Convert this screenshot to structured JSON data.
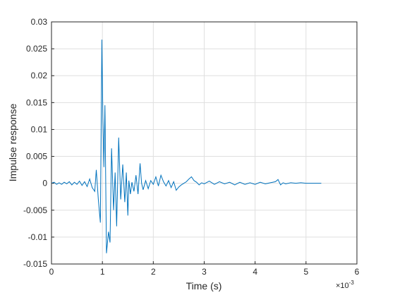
{
  "chart_data": {
    "type": "line",
    "xlabel": "Time (s)",
    "ylabel": "Impulse response",
    "x_exponent": {
      "base": "×10",
      "power": "-3"
    },
    "xlim": [
      0,
      6
    ],
    "xticks": [
      0,
      1,
      2,
      3,
      4,
      5,
      6
    ],
    "ylim": [
      -0.015,
      0.03
    ],
    "yticks": [
      -0.015,
      -0.01,
      -0.005,
      0,
      0.005,
      0.01,
      0.015,
      0.02,
      0.025,
      0.03
    ],
    "grid": true,
    "series": [
      {
        "color": "#0072bd",
        "x": [
          0,
          0.05,
          0.1,
          0.15,
          0.2,
          0.25,
          0.3,
          0.35,
          0.4,
          0.45,
          0.5,
          0.55,
          0.6,
          0.65,
          0.7,
          0.75,
          0.8,
          0.85,
          0.88,
          0.92,
          0.96,
          0.99,
          1.01,
          1.03,
          1.05,
          1.08,
          1.12,
          1.15,
          1.18,
          1.22,
          1.25,
          1.28,
          1.32,
          1.36,
          1.4,
          1.44,
          1.47,
          1.5,
          1.52,
          1.55,
          1.58,
          1.62,
          1.66,
          1.7,
          1.74,
          1.77,
          1.8,
          1.85,
          1.9,
          1.95,
          2.0,
          2.05,
          2.1,
          2.15,
          2.2,
          2.25,
          2.3,
          2.35,
          2.4,
          2.45,
          2.5,
          2.55,
          2.6,
          2.65,
          2.7,
          2.75,
          2.8,
          2.85,
          2.9,
          2.95,
          3.0,
          3.1,
          3.2,
          3.3,
          3.4,
          3.5,
          3.6,
          3.7,
          3.8,
          3.9,
          4.0,
          4.1,
          4.2,
          4.3,
          4.4,
          4.45,
          4.5,
          4.55,
          4.6,
          4.7,
          4.8,
          4.9,
          5.0,
          5.1,
          5.2,
          5.3
        ],
        "values": [
          0,
          0.0002,
          -0.0002,
          0.0001,
          -0.0002,
          0.0002,
          -0.0001,
          0.0003,
          -0.0003,
          0.0002,
          -0.0002,
          0.0004,
          -0.0004,
          0.0003,
          -0.0006,
          0.0008,
          -0.0008,
          -0.0015,
          0.0025,
          -0.003,
          -0.0073,
          0.0267,
          0.012,
          0.003,
          0.0145,
          -0.013,
          -0.009,
          -0.011,
          0.0065,
          -0.005,
          0.002,
          -0.008,
          0.0085,
          -0.003,
          0.0035,
          -0.0035,
          0.002,
          -0.006,
          0.0005,
          -0.002,
          0.0002,
          -0.0015,
          0.0015,
          -0.002,
          0.0037,
          0,
          -0.0012,
          0.0005,
          -0.001,
          0.0005,
          -0.0002,
          0.0012,
          -0.0005,
          0.0015,
          0.0003,
          -0.0005,
          0.0005,
          -0.0008,
          0.0003,
          -0.0013,
          -0.0007,
          -0.0003,
          0,
          0.0003,
          0.0008,
          0.0012,
          0.0005,
          0.0002,
          -0.0003,
          0.0001,
          -0.0001,
          0.0004,
          -0.0002,
          0.0003,
          -0.0001,
          0.0002,
          -0.0003,
          0.0002,
          -0.0002,
          0.0001,
          -0.0002,
          0.0002,
          -0.0001,
          0.0001,
          0.0003,
          0.0007,
          -0.0003,
          0.0001,
          -0.0001,
          0.0001,
          0,
          0.0001,
          0,
          0,
          0,
          0
        ]
      }
    ]
  }
}
